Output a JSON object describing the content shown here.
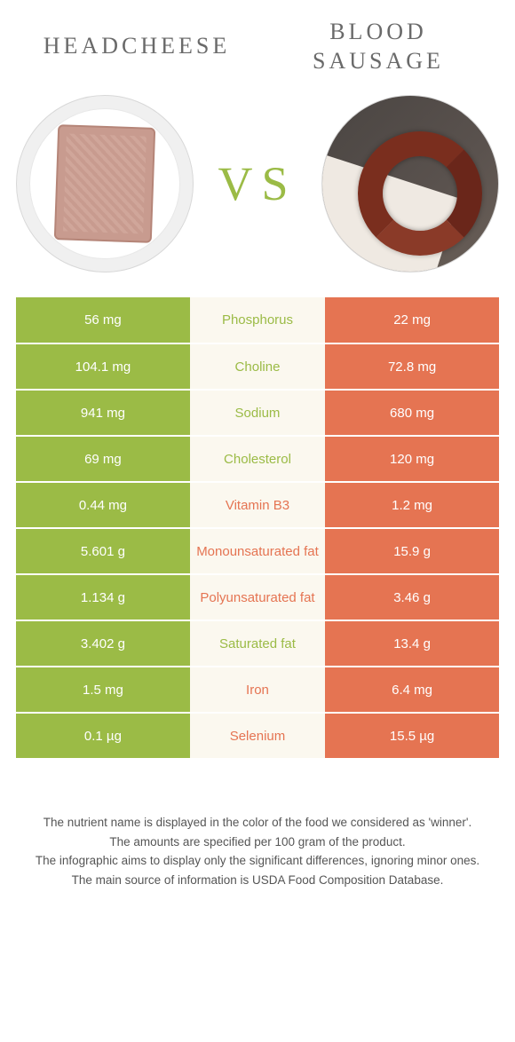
{
  "colors": {
    "green": "#9bbb46",
    "orange": "#e57452",
    "mid_bg": "#fbf8ef",
    "text": "#555555",
    "white": "#ffffff"
  },
  "header": {
    "left_title": "HEADCHEESE",
    "right_title_line1": "BLOOD",
    "right_title_line2": "SAUSAGE",
    "vs_label": "VS"
  },
  "nutrients": [
    {
      "name": "Phosphorus",
      "left": "56 mg",
      "right": "22 mg",
      "winner": "left"
    },
    {
      "name": "Choline",
      "left": "104.1 mg",
      "right": "72.8 mg",
      "winner": "left"
    },
    {
      "name": "Sodium",
      "left": "941 mg",
      "right": "680 mg",
      "winner": "left"
    },
    {
      "name": "Cholesterol",
      "left": "69 mg",
      "right": "120 mg",
      "winner": "left"
    },
    {
      "name": "Vitamin B3",
      "left": "0.44 mg",
      "right": "1.2 mg",
      "winner": "right"
    },
    {
      "name": "Monounsaturated fat",
      "left": "5.601 g",
      "right": "15.9 g",
      "winner": "right"
    },
    {
      "name": "Polyunsaturated fat",
      "left": "1.134 g",
      "right": "3.46 g",
      "winner": "right"
    },
    {
      "name": "Saturated fat",
      "left": "3.402 g",
      "right": "13.4 g",
      "winner": "left"
    },
    {
      "name": "Iron",
      "left": "1.5 mg",
      "right": "6.4 mg",
      "winner": "right"
    },
    {
      "name": "Selenium",
      "left": "0.1 µg",
      "right": "15.5 µg",
      "winner": "right"
    }
  ],
  "footnotes": [
    "The nutrient name is displayed in the color of the food we considered as 'winner'.",
    "The amounts are specified per 100 gram of the product.",
    "The infographic aims to display only the significant differences, ignoring minor ones.",
    "The main source of information is USDA Food Composition Database."
  ]
}
